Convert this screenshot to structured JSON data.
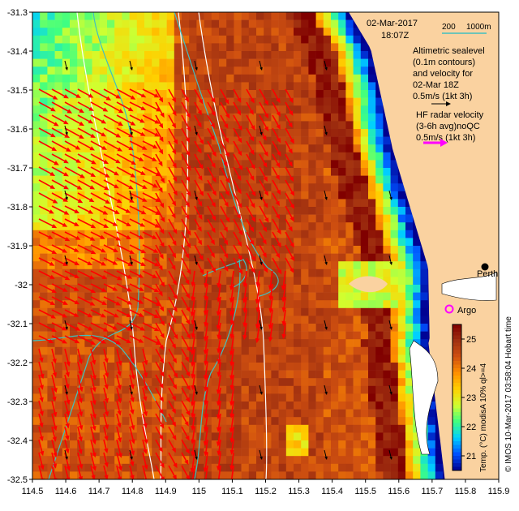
{
  "chart_data": {
    "type": "heatmap",
    "title": "",
    "date": "02-Mar-2017",
    "time": "18:07Z",
    "x_tick_labels": [
      "114.5",
      "114.6",
      "114.7",
      "114.8",
      "114.9",
      "115",
      "115.1",
      "115.2",
      "115.3",
      "115.4",
      "115.5",
      "115.6",
      "115.7",
      "115.8",
      "115.9"
    ],
    "y_tick_labels": [
      "-31.3",
      "-31.4",
      "-31.5",
      "-31.6",
      "-31.7",
      "-31.8",
      "-31.9",
      "-32",
      "-32.1",
      "-32.2",
      "-32.3",
      "-32.4",
      "-32.5"
    ],
    "xlim": [
      114.5,
      115.9
    ],
    "ylim": [
      -32.5,
      -31.3
    ],
    "colorbar": {
      "label": "Temp. (°C) modisA 10% ql>=4",
      "ticks": [
        "25",
        "24",
        "23",
        "22",
        "21"
      ],
      "range": [
        20.5,
        25.5
      ],
      "colors": [
        "#00008f",
        "#0050ff",
        "#00d0ff",
        "#40ff80",
        "#d0ff30",
        "#ffd000",
        "#ff9000",
        "#d05010",
        "#a03010",
        "#800000"
      ]
    },
    "bathymetry_legend": {
      "label_200": "200",
      "label_1000": "1000m",
      "color": "#40c0c0"
    },
    "altimetry_note": [
      "Altimetric sealevel",
      "(0.1m contours)",
      "and velocity for",
      "02-Mar 18Z",
      "0.5m/s (1kt 3h)"
    ],
    "radar_note": [
      "HF radar velocity",
      "(3-6h avg)noQC",
      "0.5m/s (1kt 3h)"
    ],
    "places": [
      {
        "name": "Perth",
        "lon": 115.86,
        "lat": -31.95,
        "marker": "dot"
      },
      {
        "name": "Argo",
        "lon": 115.75,
        "lat": -32.07,
        "marker": "circle"
      }
    ],
    "credit": "© IMOS 10-Mar-2017 03:58:04 Hobart time",
    "colors": {
      "land": "#fad2a0",
      "radar_arrow": "#ff0000",
      "altimetry_arrow": "#000000",
      "radar_legend_arrow": "#ff00ff",
      "frame": "#000000"
    }
  }
}
